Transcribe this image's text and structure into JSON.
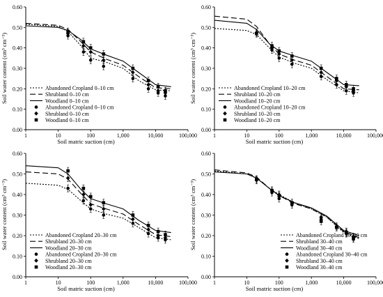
{
  "chart_data": [
    {
      "type": "line",
      "x_scale": "log",
      "xlabel": "Soil matric suction (cm)",
      "ylabel": "Soil water content (cm³ cm⁻³)",
      "xlim": [
        1,
        100000
      ],
      "ylim": [
        0,
        0.6
      ],
      "x_ticks": [
        "1",
        "10",
        "100",
        "1,000",
        "10,000",
        "100,000"
      ],
      "y_ticks": [
        "0.00",
        "0.10",
        "0.20",
        "0.30",
        "0.40",
        "0.50",
        "0.60"
      ],
      "legend_position": "bottom-left",
      "series": [
        {
          "name": "Abandoned Cropland 0–10 cm",
          "kind": "fit",
          "dash": "dotted",
          "color": "#000000",
          "x": [
            1,
            10,
            20,
            50,
            100,
            300,
            1000,
            3000,
            10000,
            30000
          ],
          "y": [
            0.515,
            0.505,
            0.48,
            0.41,
            0.35,
            0.33,
            0.3,
            0.24,
            0.195,
            0.19
          ]
        },
        {
          "name": "Shrubland 0–10 cm",
          "kind": "fit",
          "dash": "dashed",
          "color": "#000000",
          "x": [
            1,
            10,
            20,
            50,
            100,
            300,
            1000,
            3000,
            10000,
            30000
          ],
          "y": [
            0.52,
            0.51,
            0.49,
            0.43,
            0.38,
            0.345,
            0.315,
            0.26,
            0.205,
            0.2
          ]
        },
        {
          "name": "Woodland 0–10 cm",
          "kind": "fit",
          "dash": "solid",
          "color": "#000000",
          "x": [
            1,
            10,
            20,
            50,
            100,
            300,
            1000,
            3000,
            10000,
            30000
          ],
          "y": [
            0.508,
            0.5,
            0.485,
            0.44,
            0.395,
            0.365,
            0.335,
            0.28,
            0.22,
            0.21
          ]
        },
        {
          "name": "Abandoned Cropland 0–10 cm",
          "kind": "observed",
          "marker": "circle",
          "color": "#000000",
          "x": [
            20,
            60,
            100,
            250,
            2000,
            6000,
            12000,
            20000
          ],
          "y": [
            0.46,
            0.38,
            0.34,
            0.31,
            0.25,
            0.2,
            0.18,
            0.165
          ]
        },
        {
          "name": "Shrubland 0–10 cm",
          "kind": "observed",
          "marker": "diamond",
          "color": "#000000",
          "x": [
            20,
            60,
            100,
            250,
            2000,
            6000,
            12000,
            20000
          ],
          "y": [
            0.47,
            0.41,
            0.38,
            0.34,
            0.28,
            0.22,
            0.19,
            0.18
          ]
        },
        {
          "name": "Woodland 0–10 cm",
          "kind": "observed",
          "marker": "square",
          "color": "#000000",
          "x": [
            20,
            60,
            100,
            250,
            2000,
            6000,
            12000,
            20000
          ],
          "y": [
            0.48,
            0.43,
            0.4,
            0.37,
            0.3,
            0.24,
            0.21,
            0.19
          ]
        }
      ]
    },
    {
      "type": "line",
      "x_scale": "log",
      "xlabel": "Soil matric suction (cm)",
      "ylabel": "Soil water content (cm³ cm⁻³)",
      "xlim": [
        1,
        100000
      ],
      "ylim": [
        0,
        0.6
      ],
      "x_ticks": [
        "1",
        "10",
        "100",
        "1,000",
        "10,000",
        "100,000"
      ],
      "y_ticks": [
        "0.00",
        "0.10",
        "0.20",
        "0.30",
        "0.40",
        "0.50",
        "0.60"
      ],
      "legend_position": "bottom-left",
      "series": [
        {
          "name": "Abandoned Cropland 10–20 cm",
          "kind": "fit",
          "dash": "dotted",
          "color": "#000000",
          "x": [
            1,
            10,
            20,
            50,
            100,
            300,
            1000,
            3000,
            10000,
            30000
          ],
          "y": [
            0.495,
            0.485,
            0.465,
            0.4,
            0.355,
            0.325,
            0.3,
            0.245,
            0.19,
            0.18
          ]
        },
        {
          "name": "Shrubland 10–20 cm",
          "kind": "fit",
          "dash": "dashed",
          "color": "#000000",
          "x": [
            1,
            10,
            20,
            50,
            100,
            300,
            1000,
            3000,
            10000,
            30000
          ],
          "y": [
            0.555,
            0.54,
            0.505,
            0.42,
            0.37,
            0.34,
            0.315,
            0.26,
            0.2,
            0.195
          ]
        },
        {
          "name": "Woodland 10–20 cm",
          "kind": "fit",
          "dash": "solid",
          "color": "#000000",
          "x": [
            1,
            10,
            20,
            50,
            100,
            300,
            1000,
            3000,
            10000,
            30000
          ],
          "y": [
            0.535,
            0.52,
            0.49,
            0.42,
            0.385,
            0.36,
            0.335,
            0.28,
            0.22,
            0.215
          ]
        },
        {
          "name": "Abandoned Cropland 10–20 cm",
          "kind": "observed",
          "marker": "circle",
          "color": "#000000",
          "x": [
            20,
            60,
            100,
            250,
            2000,
            6000,
            12000,
            20000
          ],
          "y": [
            0.47,
            0.39,
            0.35,
            0.32,
            0.26,
            0.22,
            0.19,
            0.18
          ]
        },
        {
          "name": "Shrubland 10–20 cm",
          "kind": "observed",
          "marker": "diamond",
          "color": "#000000",
          "x": [
            20,
            60,
            100,
            250,
            2000,
            6000,
            12000,
            20000
          ],
          "y": [
            0.475,
            0.4,
            0.37,
            0.34,
            0.28,
            0.24,
            0.21,
            0.19
          ]
        },
        {
          "name": "Woodland 10–20 cm",
          "kind": "observed",
          "marker": "square",
          "color": "#000000",
          "x": [
            20,
            60,
            100,
            250,
            2000,
            6000,
            12000,
            20000
          ],
          "y": [
            0.47,
            0.41,
            0.385,
            0.36,
            0.3,
            0.25,
            0.22,
            0.2
          ]
        }
      ]
    },
    {
      "type": "line",
      "x_scale": "log",
      "xlabel": "Soil matric suction (cm)",
      "ylabel": "Soil water content (cm³ cm⁻³)",
      "xlim": [
        1,
        100000
      ],
      "ylim": [
        0,
        0.6
      ],
      "x_ticks": [
        "1",
        "10",
        "100",
        "1,000",
        "10,000",
        "100,000"
      ],
      "y_ticks": [
        "0.00",
        "0.10",
        "0.20",
        "0.30",
        "0.40",
        "0.50",
        "0.60"
      ],
      "legend_position": "bottom-left",
      "series": [
        {
          "name": "Abandoned Cropland 20–30 cm",
          "kind": "fit",
          "dash": "dotted",
          "color": "#000000",
          "x": [
            1,
            10,
            20,
            50,
            100,
            300,
            1000,
            3000,
            10000,
            30000
          ],
          "y": [
            0.455,
            0.445,
            0.425,
            0.37,
            0.33,
            0.305,
            0.285,
            0.24,
            0.19,
            0.18
          ]
        },
        {
          "name": "Shrubland 20–30 cm",
          "kind": "fit",
          "dash": "dashed",
          "color": "#000000",
          "x": [
            1,
            10,
            20,
            50,
            100,
            300,
            1000,
            3000,
            10000,
            30000
          ],
          "y": [
            0.51,
            0.5,
            0.475,
            0.405,
            0.355,
            0.33,
            0.305,
            0.255,
            0.205,
            0.195
          ]
        },
        {
          "name": "Woodland 20–30 cm",
          "kind": "fit",
          "dash": "solid",
          "color": "#000000",
          "x": [
            1,
            10,
            20,
            50,
            100,
            300,
            1000,
            3000,
            10000,
            30000
          ],
          "y": [
            0.54,
            0.53,
            0.5,
            0.425,
            0.38,
            0.355,
            0.33,
            0.275,
            0.225,
            0.215
          ]
        },
        {
          "name": "Abandoned Cropland 20–30 cm",
          "kind": "observed",
          "marker": "circle",
          "color": "#000000",
          "x": [
            20,
            60,
            100,
            250,
            2000,
            6000,
            12000,
            20000
          ],
          "y": [
            0.43,
            0.37,
            0.33,
            0.3,
            0.26,
            0.21,
            0.19,
            0.18
          ]
        },
        {
          "name": "Shrubland 20–30 cm",
          "kind": "observed",
          "marker": "diamond",
          "color": "#000000",
          "x": [
            20,
            60,
            100,
            250,
            2000,
            6000,
            12000,
            20000
          ],
          "y": [
            0.48,
            0.4,
            0.35,
            0.33,
            0.28,
            0.23,
            0.2,
            0.19
          ]
        },
        {
          "name": "Woodland 20–30 cm",
          "kind": "observed",
          "marker": "square",
          "color": "#000000",
          "x": [
            20,
            60,
            100,
            250,
            2000,
            6000,
            12000,
            20000
          ],
          "y": [
            0.515,
            0.43,
            0.39,
            0.36,
            0.3,
            0.25,
            0.22,
            0.205
          ]
        }
      ]
    },
    {
      "type": "line",
      "x_scale": "log",
      "xlabel": "Soil matric suction (cm)",
      "ylabel": "Soil water content (cm³ cm⁻³)",
      "xlim": [
        1,
        100000
      ],
      "ylim": [
        0,
        0.6
      ],
      "x_ticks": [
        "1",
        "10",
        "100",
        "1,000",
        "10,000",
        "100,000"
      ],
      "y_ticks": [
        "0.00",
        "0.10",
        "0.20",
        "0.30",
        "0.40",
        "0.50",
        "0.60"
      ],
      "legend_position": "bottom-right",
      "series": [
        {
          "name": "Abandoned Cropland 30–40 cm",
          "kind": "fit",
          "dash": "dotted",
          "color": "#000000",
          "x": [
            1,
            10,
            20,
            50,
            100,
            300,
            1000,
            3000,
            10000,
            30000
          ],
          "y": [
            0.515,
            0.5,
            0.48,
            0.43,
            0.4,
            0.36,
            0.33,
            0.29,
            0.215,
            0.185
          ]
        },
        {
          "name": "Shrubland 30–40 cm",
          "kind": "fit",
          "dash": "dashed",
          "color": "#000000",
          "x": [
            1,
            10,
            20,
            50,
            100,
            300,
            1000,
            3000,
            10000,
            30000
          ],
          "y": [
            0.52,
            0.505,
            0.485,
            0.43,
            0.395,
            0.355,
            0.33,
            0.29,
            0.22,
            0.19
          ]
        },
        {
          "name": "Woodland 30–40 cm",
          "kind": "fit",
          "dash": "solid",
          "color": "#000000",
          "x": [
            1,
            10,
            20,
            50,
            100,
            300,
            1000,
            3000,
            10000,
            30000
          ],
          "y": [
            0.51,
            0.5,
            0.48,
            0.43,
            0.395,
            0.36,
            0.335,
            0.295,
            0.225,
            0.2
          ]
        },
        {
          "name": "Abandoned Cropland 30–40 cm",
          "kind": "observed",
          "marker": "circle",
          "color": "#000000",
          "x": [
            20,
            60,
            100,
            250,
            2000,
            6000,
            12000,
            20000
          ],
          "y": [
            0.47,
            0.41,
            0.38,
            0.35,
            0.28,
            0.24,
            0.21,
            0.19
          ]
        },
        {
          "name": "Shrubland 30–40 cm",
          "kind": "observed",
          "marker": "diamond",
          "color": "#000000",
          "x": [
            20,
            60,
            100,
            250,
            2000,
            6000,
            12000,
            20000
          ],
          "y": [
            0.47,
            0.42,
            0.4,
            0.36,
            0.29,
            0.245,
            0.22,
            0.195
          ]
        },
        {
          "name": "Woodland 30–40 cm",
          "kind": "observed",
          "marker": "square",
          "color": "#000000",
          "x": [
            20,
            60,
            100,
            250,
            2000,
            6000,
            12000,
            20000
          ],
          "y": [
            0.475,
            0.42,
            0.395,
            0.36,
            0.27,
            0.24,
            0.215,
            0.185
          ]
        }
      ]
    }
  ]
}
